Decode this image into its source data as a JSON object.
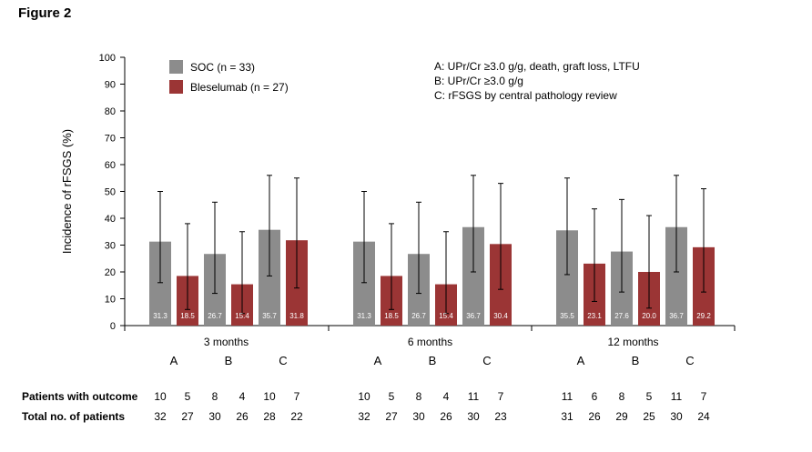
{
  "figure_label": "Figure 2",
  "chart_data": {
    "type": "bar",
    "ylabel": "Incidence of rFSGS (%)",
    "ylim": [
      0,
      100
    ],
    "yticks": [
      0,
      10,
      20,
      30,
      40,
      50,
      60,
      70,
      80,
      90,
      100
    ],
    "groups": [
      "3 months",
      "6 months",
      "12 months"
    ],
    "subgroups": [
      "A",
      "B",
      "C"
    ],
    "series": [
      {
        "name": "SOC (n = 33)",
        "color": "#8c8c8c",
        "values": [
          31.3,
          26.7,
          35.7,
          31.3,
          26.7,
          36.7,
          35.5,
          27.6,
          36.7
        ],
        "labels": [
          "31.3",
          "26.7",
          "35.7",
          "31.3",
          "26.7",
          "36.7",
          "35.5",
          "27.6",
          "36.7"
        ],
        "err_low": [
          16,
          12,
          18.5,
          16,
          12,
          20,
          19,
          12.5,
          20
        ],
        "err_high": [
          50,
          46,
          56,
          50,
          46,
          56,
          55,
          47,
          56
        ]
      },
      {
        "name": "Bleselumab (n = 27)",
        "color": "#9b3535",
        "values": [
          18.5,
          15.4,
          31.8,
          18.5,
          15.4,
          30.4,
          23.1,
          20.0,
          29.2
        ],
        "labels": [
          "18.5",
          "15.4",
          "31.8",
          "18.5",
          "15.4",
          "30.4",
          "23.1",
          "20.0",
          "29.2"
        ],
        "err_low": [
          6,
          4.5,
          14,
          6,
          4.5,
          13.5,
          9,
          6.5,
          12.5
        ],
        "err_high": [
          38,
          35,
          55,
          38,
          35,
          53,
          43.5,
          41,
          51
        ]
      }
    ],
    "annotations": [
      "A: UPr/Cr ≥3.0 g/g, death, graft loss, LTFU",
      "B: UPr/Cr ≥3.0 g/g",
      "C: rFSGS by central pathology review"
    ]
  },
  "table": {
    "rows": [
      {
        "label": "Patients with outcome",
        "values": [
          "10",
          "5",
          "8",
          "4",
          "10",
          "7",
          "10",
          "5",
          "8",
          "4",
          "11",
          "7",
          "11",
          "6",
          "8",
          "5",
          "11",
          "7"
        ]
      },
      {
        "label": "Total no. of patients",
        "values": [
          "32",
          "27",
          "30",
          "26",
          "28",
          "22",
          "32",
          "27",
          "30",
          "26",
          "30",
          "23",
          "31",
          "26",
          "29",
          "25",
          "30",
          "24"
        ]
      }
    ]
  }
}
